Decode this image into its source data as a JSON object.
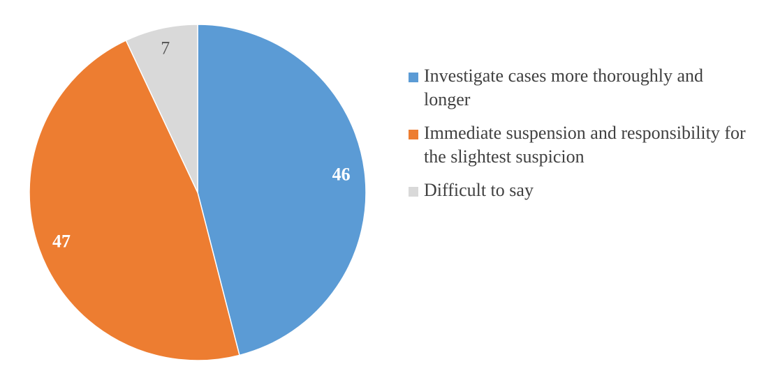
{
  "chart_data": {
    "type": "pie",
    "categories": [
      "Investigate cases more thoroughly and longer",
      "Immediate suspension and responsibility for the slightest suspicion",
      "Difficult to say"
    ],
    "values": [
      46,
      47,
      7
    ],
    "value_labels": [
      "46",
      "47",
      "7"
    ],
    "colors": [
      "#5b9bd5",
      "#ed7d31",
      "#d9d9d9"
    ],
    "label_colors": [
      "#ffffff",
      "#ffffff",
      "#595959"
    ],
    "label_bold": [
      true,
      true,
      false
    ],
    "start_angle_deg": 0,
    "direction": "clockwise",
    "legend_position": "right"
  }
}
